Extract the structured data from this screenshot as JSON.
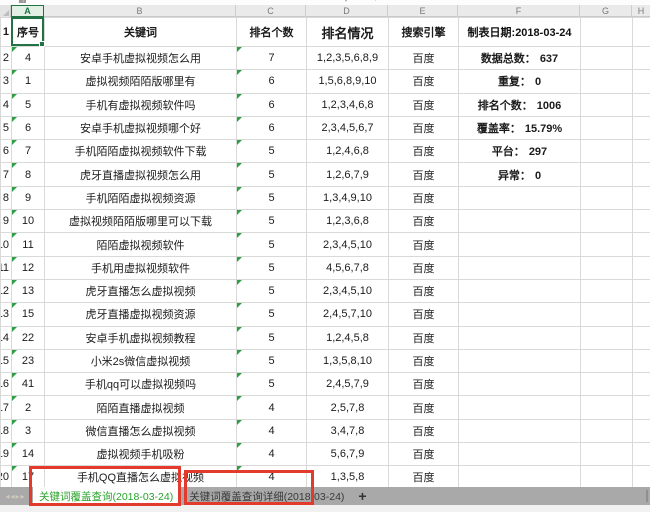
{
  "column_letters": [
    "A",
    "B",
    "C",
    "D",
    "E",
    "F",
    "G",
    "H"
  ],
  "header_row": {
    "row_num": "1",
    "serial": "序号",
    "keyword": "关键词",
    "rank_count": "排名个数",
    "rank_status": "排名情况",
    "engine": "搜索引擎",
    "date_label": "制表日期:2018-03-24"
  },
  "rows": [
    {
      "row": "2",
      "serial": "4",
      "keyword": "安卓手机虚拟视频怎么用",
      "count": "7",
      "ranks": "1,2,3,5,6,8,9",
      "engine": "百度"
    },
    {
      "row": "3",
      "serial": "1",
      "keyword": "虚拟视频陌陌版哪里有",
      "count": "6",
      "ranks": "1,5,6,8,9,10",
      "engine": "百度"
    },
    {
      "row": "4",
      "serial": "5",
      "keyword": "手机有虚拟视频软件吗",
      "count": "6",
      "ranks": "1,2,3,4,6,8",
      "engine": "百度"
    },
    {
      "row": "5",
      "serial": "6",
      "keyword": "安卓手机虚拟视频哪个好",
      "count": "6",
      "ranks": "2,3,4,5,6,7",
      "engine": "百度"
    },
    {
      "row": "6",
      "serial": "7",
      "keyword": "手机陌陌虚拟视频软件下载",
      "count": "5",
      "ranks": "1,2,4,6,8",
      "engine": "百度"
    },
    {
      "row": "7",
      "serial": "8",
      "keyword": "虎牙直播虚拟视频怎么用",
      "count": "5",
      "ranks": "1,2,6,7,9",
      "engine": "百度"
    },
    {
      "row": "8",
      "serial": "9",
      "keyword": "手机陌陌虚拟视频资源",
      "count": "5",
      "ranks": "1,3,4,9,10",
      "engine": "百度"
    },
    {
      "row": "9",
      "serial": "10",
      "keyword": "虚拟视频陌陌版哪里可以下载",
      "count": "5",
      "ranks": "1,2,3,6,8",
      "engine": "百度"
    },
    {
      "row": "10",
      "serial": "11",
      "keyword": "陌陌虚拟视频软件",
      "count": "5",
      "ranks": "2,3,4,5,10",
      "engine": "百度"
    },
    {
      "row": "11",
      "serial": "12",
      "keyword": "手机用虚拟视频软件",
      "count": "5",
      "ranks": "4,5,6,7,8",
      "engine": "百度"
    },
    {
      "row": "12",
      "serial": "13",
      "keyword": "虎牙直播怎么虚拟视频",
      "count": "5",
      "ranks": "2,3,4,5,10",
      "engine": "百度"
    },
    {
      "row": "13",
      "serial": "15",
      "keyword": "虎牙直播虚拟视频资源",
      "count": "5",
      "ranks": "2,4,5,7,10",
      "engine": "百度"
    },
    {
      "row": "14",
      "serial": "22",
      "keyword": "安卓手机虚拟视频教程",
      "count": "5",
      "ranks": "1,2,4,5,8",
      "engine": "百度"
    },
    {
      "row": "15",
      "serial": "23",
      "keyword": "小米2s微信虚拟视频",
      "count": "5",
      "ranks": "1,3,5,8,10",
      "engine": "百度"
    },
    {
      "row": "16",
      "serial": "41",
      "keyword": "手机qq可以虚拟视频吗",
      "count": "5",
      "ranks": "2,4,5,7,9",
      "engine": "百度"
    },
    {
      "row": "17",
      "serial": "2",
      "keyword": "陌陌直播虚拟视频",
      "count": "4",
      "ranks": "2,5,7,8",
      "engine": "百度"
    },
    {
      "row": "18",
      "serial": "3",
      "keyword": "微信直播怎么虚拟视频",
      "count": "4",
      "ranks": "3,4,7,8",
      "engine": "百度"
    },
    {
      "row": "19",
      "serial": "14",
      "keyword": "虚拟视频手机吸粉",
      "count": "4",
      "ranks": "5,6,7,9",
      "engine": "百度"
    },
    {
      "row": "20",
      "serial": "17",
      "keyword": "手机QQ直播怎么虚拟视频",
      "count": "4",
      "ranks": "1,3,5,8",
      "engine": "百度"
    }
  ],
  "stats": [
    {
      "label": "数据总数：",
      "value": "637"
    },
    {
      "label": "重复：",
      "value": "0"
    },
    {
      "label": "排名个数：",
      "value": "1006"
    },
    {
      "label": "覆盖率：",
      "value": "15.79%"
    },
    {
      "label": "平台：",
      "value": "297"
    },
    {
      "label": "异常：",
      "value": "0"
    }
  ],
  "sheet_tabs": {
    "nav_arrows": "◂◂▸▸",
    "active": "关键词覆盖查询(2018-03-24)",
    "inactive": "关键词覆盖查询详细(2018-03-24)",
    "add_label": "+"
  },
  "colors": {
    "header_lavender": "#cbccf1",
    "stat_blue": "#2b6bd0",
    "selection_green": "#217346",
    "triangle_green": "#2f9e44",
    "tab_active_green": "#2aa32a",
    "annotation_red": "#e23b2e"
  }
}
